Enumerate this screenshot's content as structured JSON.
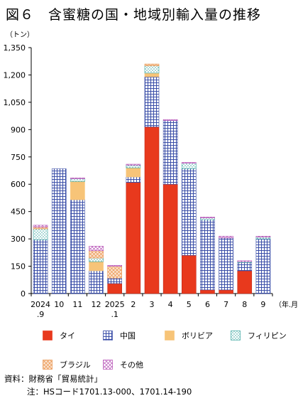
{
  "title": "図６　含蜜糖の国・地域別輸入量の推移",
  "unit_label": "（トン）",
  "source": {
    "line1": "資料：財務省「貿易統計」",
    "line2": "注：HSコード1701.13-000、1701.14-190"
  },
  "chart_data": {
    "type": "bar",
    "stacked": true,
    "categories": [
      [
        "2024",
        ".9"
      ],
      [
        "10"
      ],
      [
        "11"
      ],
      [
        "12"
      ],
      [
        "2025",
        ".1"
      ],
      [
        "2"
      ],
      [
        "3"
      ],
      [
        "4"
      ],
      [
        "5"
      ],
      [
        "6"
      ],
      [
        "7"
      ],
      [
        "8"
      ],
      [
        "9"
      ]
    ],
    "x_unit_label": "（年.月）",
    "y_ticks": [
      "0",
      "150",
      "300",
      "450",
      "600",
      "750",
      "900",
      "1,050",
      "1,200",
      "1,350"
    ],
    "ylim": [
      0,
      1350
    ],
    "grid": false,
    "series": [
      {
        "name": "タイ",
        "color": "#e8391d",
        "pattern": "solid",
        "values": [
          0,
          0,
          0,
          0,
          55,
          610,
          915,
          600,
          210,
          20,
          20,
          125,
          0
        ]
      },
      {
        "name": "中国",
        "color": "#3b4fa8",
        "pattern": "grid",
        "values": [
          295,
          685,
          515,
          125,
          30,
          30,
          275,
          350,
          475,
          385,
          285,
          45,
          300
        ]
      },
      {
        "name": "ボリビア",
        "color": "#f7c478",
        "pattern": "solid-orange",
        "values": [
          0,
          0,
          100,
          50,
          0,
          50,
          20,
          0,
          0,
          0,
          0,
          0,
          0
        ]
      },
      {
        "name": "フィリピン",
        "color": "#3aa6a0",
        "pattern": "dots",
        "values": [
          60,
          0,
          15,
          20,
          0,
          15,
          40,
          0,
          30,
          10,
          0,
          5,
          10
        ]
      },
      {
        "name": "ブラジル",
        "color": "#e9924a",
        "pattern": "hatch",
        "values": [
          10,
          0,
          0,
          40,
          65,
          0,
          10,
          0,
          0,
          0,
          0,
          0,
          0
        ]
      },
      {
        "name": "その他",
        "color": "#b44cb4",
        "pattern": "diamond",
        "values": [
          10,
          0,
          5,
          25,
          5,
          5,
          0,
          5,
          5,
          5,
          10,
          5,
          5
        ]
      }
    ],
    "legend": [
      "タイ",
      "中国",
      "ボリビア",
      "フィリピン",
      "ブラジル",
      "その他"
    ],
    "legend_position": "bottom"
  }
}
